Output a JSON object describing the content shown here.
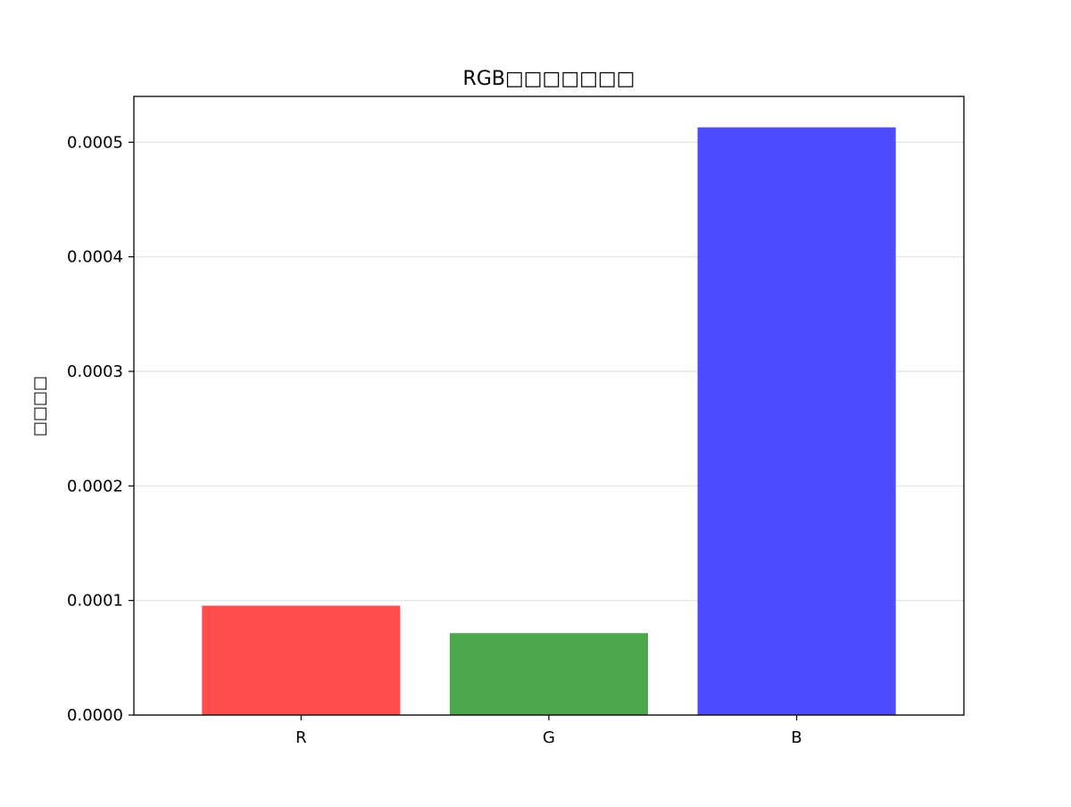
{
  "chart_data": {
    "type": "bar",
    "title": "RGB□□□□□□□",
    "xlabel": "",
    "ylabel": "□□□□",
    "categories": [
      "R",
      "G",
      "B"
    ],
    "values": [
      9.55e-05,
      7.15e-05,
      0.000513
    ],
    "colors": [
      "#ff4d4d",
      "#4ca64c",
      "#4d4dff"
    ],
    "ylim": [
      0,
      0.00054
    ],
    "yticks": [
      0,
      0.0001,
      0.0002,
      0.0003,
      0.0004,
      0.0005
    ],
    "ytick_labels": [
      "0.0000",
      "0.0001",
      "0.0002",
      "0.0003",
      "0.0004",
      "0.0005"
    ],
    "grid": {
      "y": true,
      "x": false,
      "color": "#e6e6e6"
    },
    "legend": "none"
  }
}
